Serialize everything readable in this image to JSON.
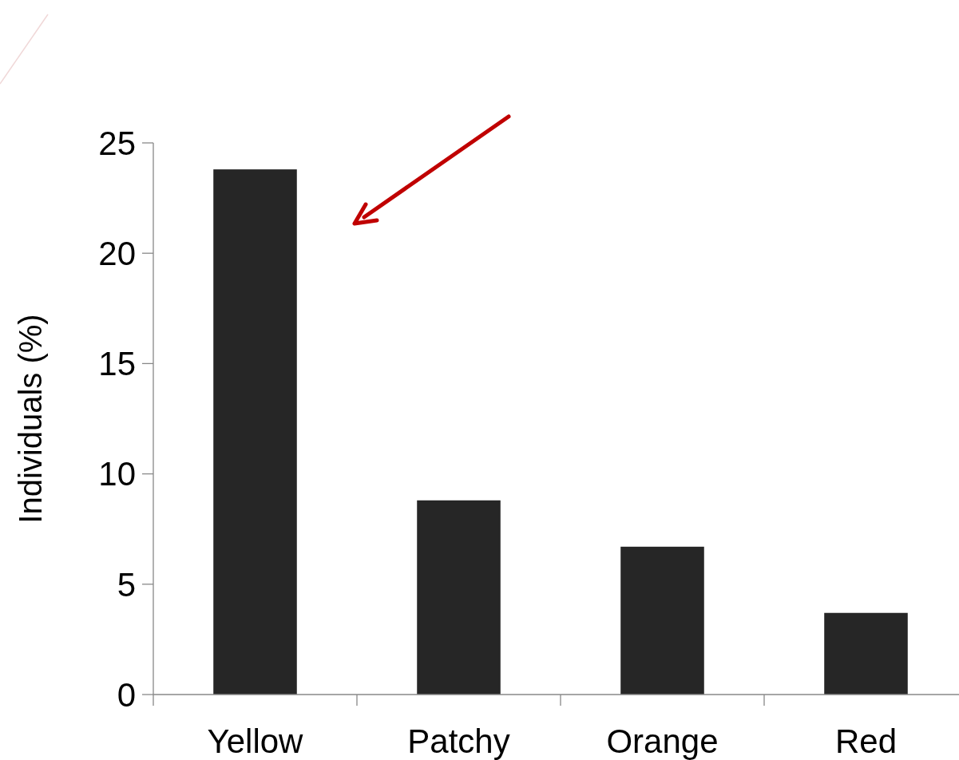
{
  "chart_data": {
    "type": "bar",
    "ylabel": "Individuals (%)",
    "categories": [
      "Yellow",
      "Patchy",
      "Orange",
      "Red"
    ],
    "values": [
      23.8,
      8.8,
      6.7,
      3.7
    ],
    "color": "#262626",
    "ylim": [
      0,
      25
    ],
    "yticks": [
      0,
      5,
      10,
      15,
      20,
      25
    ],
    "grid": false
  }
}
